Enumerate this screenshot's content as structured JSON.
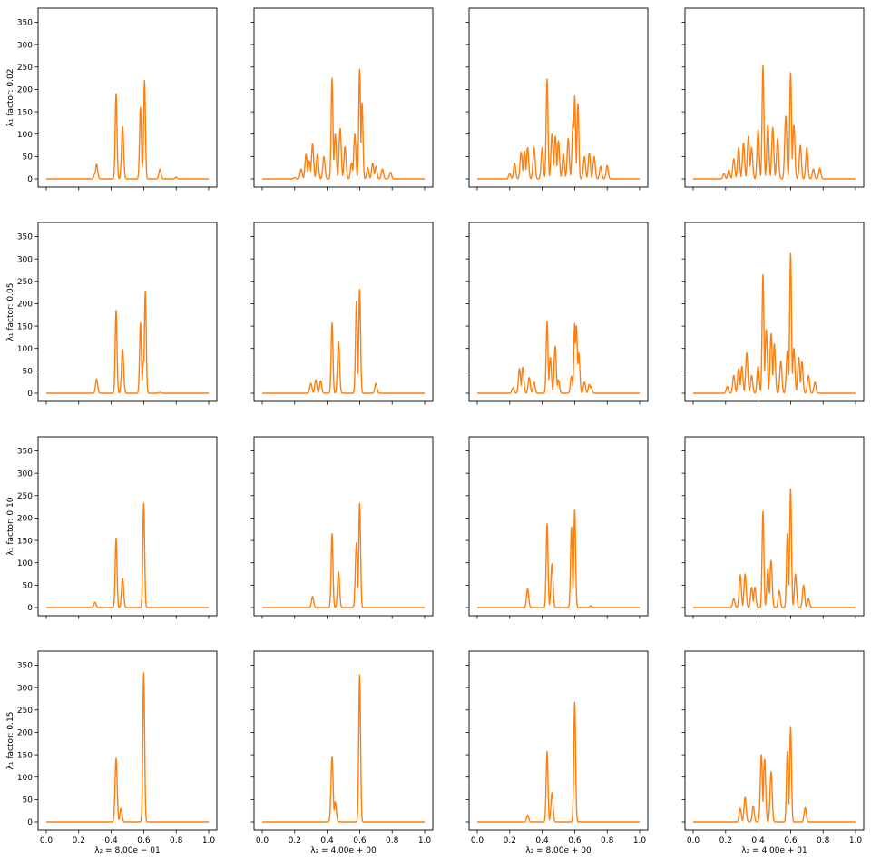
{
  "figure": {
    "row_labels": [
      "λ₁ factor: 0.02",
      "λ₁ factor: 0.05",
      "λ₁ factor: 0.10",
      "λ₁ factor: 0.15"
    ],
    "col_labels": [
      "λ₂ = 8.00e − 01",
      "λ₂ = 4.00e + 00",
      "λ₂ = 8.00e + 00",
      "λ₂ = 4.00e + 01"
    ],
    "x_ticks": [
      "0.0",
      "0.2",
      "0.4",
      "0.6",
      "0.8",
      "1.0"
    ],
    "y_ticks": [
      "0",
      "50",
      "100",
      "150",
      "200",
      "250",
      "300",
      "350"
    ],
    "line_color": "#ff7f0e"
  },
  "chart_data": {
    "type": "line",
    "layout": "4x4 grid, shared axes",
    "xlim": [
      0.0,
      1.0
    ],
    "ylim": [
      0,
      350
    ],
    "grid": false,
    "panels": [
      {
        "row": 0,
        "col": 0,
        "peaks": [
          [
            0.3,
            12
          ],
          [
            0.31,
            33
          ],
          [
            0.43,
            190
          ],
          [
            0.47,
            117
          ],
          [
            0.58,
            160
          ],
          [
            0.6,
            60
          ],
          [
            0.605,
            220
          ],
          [
            0.7,
            22
          ],
          [
            0.8,
            4
          ]
        ]
      },
      {
        "row": 0,
        "col": 1,
        "peaks": [
          [
            0.2,
            3
          ],
          [
            0.24,
            22
          ],
          [
            0.27,
            55
          ],
          [
            0.29,
            40
          ],
          [
            0.31,
            78
          ],
          [
            0.34,
            55
          ],
          [
            0.38,
            50
          ],
          [
            0.43,
            225
          ],
          [
            0.45,
            100
          ],
          [
            0.48,
            113
          ],
          [
            0.51,
            72
          ],
          [
            0.55,
            35
          ],
          [
            0.57,
            100
          ],
          [
            0.6,
            245
          ],
          [
            0.615,
            170
          ],
          [
            0.65,
            25
          ],
          [
            0.68,
            35
          ],
          [
            0.7,
            28
          ],
          [
            0.74,
            22
          ],
          [
            0.79,
            15
          ]
        ]
      },
      {
        "row": 0,
        "col": 2,
        "peaks": [
          [
            0.2,
            12
          ],
          [
            0.23,
            35
          ],
          [
            0.27,
            60
          ],
          [
            0.29,
            62
          ],
          [
            0.31,
            70
          ],
          [
            0.35,
            70
          ],
          [
            0.4,
            70
          ],
          [
            0.43,
            223
          ],
          [
            0.46,
            100
          ],
          [
            0.48,
            95
          ],
          [
            0.5,
            85
          ],
          [
            0.53,
            57
          ],
          [
            0.56,
            90
          ],
          [
            0.59,
            130
          ],
          [
            0.6,
            185
          ],
          [
            0.62,
            168
          ],
          [
            0.66,
            50
          ],
          [
            0.69,
            58
          ],
          [
            0.72,
            50
          ],
          [
            0.76,
            28
          ],
          [
            0.8,
            30
          ]
        ]
      },
      {
        "row": 0,
        "col": 3,
        "peaks": [
          [
            0.19,
            12
          ],
          [
            0.22,
            20
          ],
          [
            0.25,
            45
          ],
          [
            0.28,
            70
          ],
          [
            0.31,
            80
          ],
          [
            0.34,
            95
          ],
          [
            0.36,
            70
          ],
          [
            0.4,
            110
          ],
          [
            0.43,
            253
          ],
          [
            0.46,
            120
          ],
          [
            0.49,
            115
          ],
          [
            0.52,
            90
          ],
          [
            0.57,
            140
          ],
          [
            0.6,
            237
          ],
          [
            0.62,
            120
          ],
          [
            0.66,
            75
          ],
          [
            0.7,
            70
          ],
          [
            0.74,
            22
          ],
          [
            0.78,
            24
          ]
        ]
      },
      {
        "row": 1,
        "col": 0,
        "peaks": [
          [
            0.31,
            32
          ],
          [
            0.43,
            185
          ],
          [
            0.47,
            98
          ],
          [
            0.58,
            157
          ],
          [
            0.6,
            75
          ],
          [
            0.61,
            228
          ],
          [
            0.7,
            2
          ]
        ]
      },
      {
        "row": 1,
        "col": 1,
        "peaks": [
          [
            0.3,
            22
          ],
          [
            0.33,
            30
          ],
          [
            0.36,
            28
          ],
          [
            0.43,
            157
          ],
          [
            0.47,
            115
          ],
          [
            0.58,
            205
          ],
          [
            0.6,
            232
          ],
          [
            0.7,
            22
          ]
        ]
      },
      {
        "row": 1,
        "col": 2,
        "peaks": [
          [
            0.22,
            12
          ],
          [
            0.26,
            55
          ],
          [
            0.28,
            58
          ],
          [
            0.32,
            35
          ],
          [
            0.35,
            25
          ],
          [
            0.43,
            160
          ],
          [
            0.45,
            80
          ],
          [
            0.48,
            105
          ],
          [
            0.5,
            30
          ],
          [
            0.58,
            38
          ],
          [
            0.6,
            155
          ],
          [
            0.61,
            150
          ],
          [
            0.625,
            90
          ],
          [
            0.66,
            25
          ],
          [
            0.69,
            20
          ],
          [
            0.7,
            15
          ]
        ]
      },
      {
        "row": 1,
        "col": 3,
        "peaks": [
          [
            0.21,
            15
          ],
          [
            0.25,
            40
          ],
          [
            0.28,
            55
          ],
          [
            0.3,
            60
          ],
          [
            0.33,
            90
          ],
          [
            0.36,
            40
          ],
          [
            0.4,
            60
          ],
          [
            0.43,
            265
          ],
          [
            0.45,
            142
          ],
          [
            0.48,
            133
          ],
          [
            0.5,
            110
          ],
          [
            0.54,
            72
          ],
          [
            0.58,
            95
          ],
          [
            0.6,
            312
          ],
          [
            0.62,
            100
          ],
          [
            0.65,
            80
          ],
          [
            0.67,
            70
          ],
          [
            0.71,
            40
          ],
          [
            0.75,
            25
          ]
        ]
      },
      {
        "row": 2,
        "col": 0,
        "peaks": [
          [
            0.3,
            12
          ],
          [
            0.43,
            155
          ],
          [
            0.47,
            65
          ],
          [
            0.6,
            233
          ]
        ]
      },
      {
        "row": 2,
        "col": 1,
        "peaks": [
          [
            0.31,
            25
          ],
          [
            0.43,
            165
          ],
          [
            0.47,
            80
          ],
          [
            0.58,
            145
          ],
          [
            0.6,
            233
          ]
        ]
      },
      {
        "row": 2,
        "col": 2,
        "peaks": [
          [
            0.31,
            42
          ],
          [
            0.43,
            187
          ],
          [
            0.46,
            98
          ],
          [
            0.58,
            180
          ],
          [
            0.6,
            218
          ],
          [
            0.7,
            4
          ]
        ]
      },
      {
        "row": 2,
        "col": 3,
        "peaks": [
          [
            0.25,
            20
          ],
          [
            0.29,
            73
          ],
          [
            0.32,
            75
          ],
          [
            0.36,
            45
          ],
          [
            0.38,
            45
          ],
          [
            0.43,
            215
          ],
          [
            0.46,
            85
          ],
          [
            0.48,
            105
          ],
          [
            0.53,
            38
          ],
          [
            0.58,
            165
          ],
          [
            0.6,
            265
          ],
          [
            0.63,
            75
          ],
          [
            0.68,
            50
          ],
          [
            0.71,
            20
          ]
        ]
      },
      {
        "row": 3,
        "col": 0,
        "peaks": [
          [
            0.43,
            142
          ],
          [
            0.46,
            30
          ],
          [
            0.6,
            333
          ]
        ]
      },
      {
        "row": 3,
        "col": 1,
        "peaks": [
          [
            0.43,
            145
          ],
          [
            0.45,
            45
          ],
          [
            0.6,
            328
          ]
        ]
      },
      {
        "row": 3,
        "col": 2,
        "peaks": [
          [
            0.31,
            15
          ],
          [
            0.43,
            157
          ],
          [
            0.46,
            65
          ],
          [
            0.6,
            267
          ]
        ]
      },
      {
        "row": 3,
        "col": 3,
        "peaks": [
          [
            0.29,
            30
          ],
          [
            0.32,
            55
          ],
          [
            0.37,
            35
          ],
          [
            0.42,
            150
          ],
          [
            0.44,
            140
          ],
          [
            0.48,
            112
          ],
          [
            0.58,
            157
          ],
          [
            0.6,
            213
          ],
          [
            0.69,
            32
          ]
        ]
      }
    ]
  }
}
